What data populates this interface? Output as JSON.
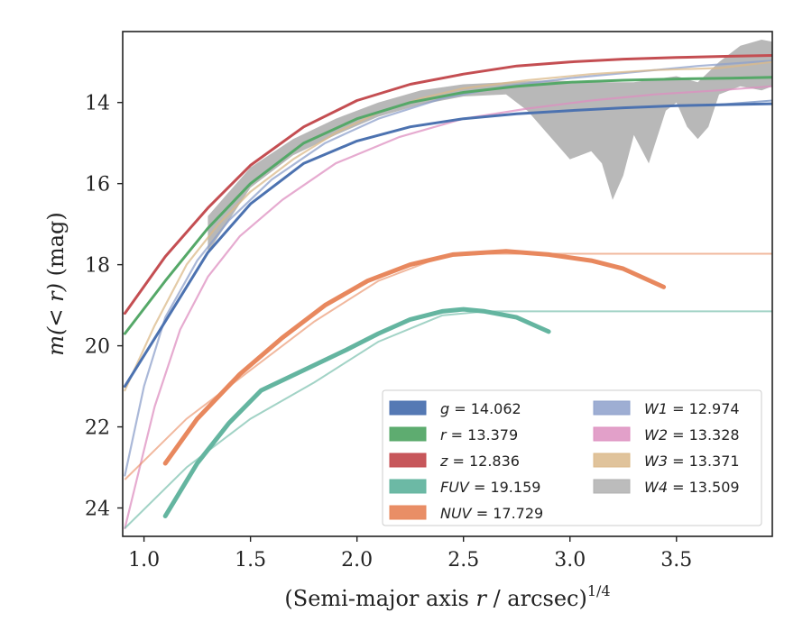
{
  "chart_data": {
    "type": "line",
    "xlabel": "(Semi-major axis r / arcsec)^1/4",
    "xlabel_parts": {
      "pre": "(Semi-major axis ",
      "var": "r",
      "mid": " / arcsec)",
      "sup": "1/4"
    },
    "ylabel": "m(<r) (mag)",
    "ylabel_parts": {
      "pre": "m",
      "var": "(< r)",
      "post": " (mag)"
    },
    "xlim": [
      0.9,
      3.95
    ],
    "ylim": [
      24.7,
      12.25
    ],
    "y_inverted": true,
    "xticks": [
      "1.0",
      "1.5",
      "2.0",
      "2.5",
      "3.0",
      "3.5"
    ],
    "yticks": [
      "14",
      "16",
      "18",
      "20",
      "22",
      "24"
    ],
    "grid": false,
    "legend_placement": "lower right",
    "series": [
      {
        "name": "g = 14.062",
        "band": "g",
        "value": "14.062",
        "color": "#4c72b0",
        "points": [
          [
            0.91,
            21.0
          ],
          [
            1.1,
            19.4
          ],
          [
            1.3,
            17.7
          ],
          [
            1.5,
            16.5
          ],
          [
            1.75,
            15.5
          ],
          [
            2.0,
            14.95
          ],
          [
            2.25,
            14.6
          ],
          [
            2.5,
            14.4
          ],
          [
            2.75,
            14.28
          ],
          [
            3.0,
            14.2
          ],
          [
            3.25,
            14.13
          ],
          [
            3.5,
            14.08
          ],
          [
            3.75,
            14.05
          ],
          [
            3.95,
            14.03
          ]
        ],
        "bound_points": [
          [
            3.7,
            14.05
          ],
          [
            3.95,
            13.95
          ]
        ]
      },
      {
        "name": "r = 13.379",
        "band": "r",
        "value": "13.379",
        "color": "#55a868",
        "points": [
          [
            0.91,
            19.7
          ],
          [
            1.1,
            18.4
          ],
          [
            1.3,
            17.1
          ],
          [
            1.5,
            16.0
          ],
          [
            1.75,
            15.0
          ],
          [
            2.0,
            14.4
          ],
          [
            2.25,
            14.0
          ],
          [
            2.5,
            13.75
          ],
          [
            2.75,
            13.6
          ],
          [
            3.0,
            13.5
          ],
          [
            3.25,
            13.45
          ],
          [
            3.5,
            13.42
          ],
          [
            3.75,
            13.4
          ],
          [
            3.95,
            13.38
          ]
        ]
      },
      {
        "name": "z = 12.836",
        "band": "z",
        "value": "12.836",
        "color": "#c44e52",
        "points": [
          [
            0.91,
            19.2
          ],
          [
            1.1,
            17.8
          ],
          [
            1.3,
            16.6
          ],
          [
            1.5,
            15.55
          ],
          [
            1.75,
            14.6
          ],
          [
            2.0,
            13.95
          ],
          [
            2.25,
            13.55
          ],
          [
            2.5,
            13.3
          ],
          [
            2.75,
            13.1
          ],
          [
            3.0,
            13.0
          ],
          [
            3.25,
            12.93
          ],
          [
            3.5,
            12.89
          ],
          [
            3.75,
            12.86
          ],
          [
            3.95,
            12.84
          ]
        ]
      },
      {
        "name": "FUV = 19.159",
        "band": "FUV",
        "value": "19.159",
        "color": "#64b5a0",
        "points": [
          [
            1.1,
            24.2
          ],
          [
            1.25,
            22.9
          ],
          [
            1.4,
            21.9
          ],
          [
            1.55,
            21.1
          ],
          [
            1.75,
            20.6
          ],
          [
            1.95,
            20.1
          ],
          [
            2.1,
            19.7
          ],
          [
            2.25,
            19.35
          ],
          [
            2.4,
            19.15
          ],
          [
            2.5,
            19.1
          ],
          [
            2.6,
            19.15
          ],
          [
            2.75,
            19.3
          ],
          [
            2.9,
            19.65
          ]
        ],
        "bound_points": [
          [
            0.91,
            24.5
          ],
          [
            1.2,
            23.0
          ],
          [
            1.5,
            21.8
          ],
          [
            1.8,
            20.9
          ],
          [
            2.1,
            19.9
          ],
          [
            2.4,
            19.25
          ],
          [
            2.6,
            19.15
          ],
          [
            3.95,
            19.15
          ]
        ]
      },
      {
        "name": "NUV = 17.729",
        "band": "NUV",
        "value": "17.729",
        "color": "#e8885e",
        "points": [
          [
            1.1,
            22.9
          ],
          [
            1.25,
            21.8
          ],
          [
            1.45,
            20.7
          ],
          [
            1.65,
            19.8
          ],
          [
            1.85,
            19.0
          ],
          [
            2.05,
            18.4
          ],
          [
            2.25,
            18.0
          ],
          [
            2.45,
            17.75
          ],
          [
            2.7,
            17.67
          ],
          [
            2.9,
            17.75
          ],
          [
            3.1,
            17.9
          ],
          [
            3.25,
            18.1
          ],
          [
            3.44,
            18.55
          ]
        ],
        "bound_points": [
          [
            0.91,
            23.3
          ],
          [
            1.2,
            21.8
          ],
          [
            1.5,
            20.6
          ],
          [
            1.8,
            19.4
          ],
          [
            2.1,
            18.4
          ],
          [
            2.4,
            17.8
          ],
          [
            2.6,
            17.73
          ],
          [
            3.95,
            17.73
          ]
        ]
      },
      {
        "name": "W1 = 12.974",
        "band": "W1",
        "value": "12.974",
        "color": "#8da0cb",
        "points": [
          [
            0.91,
            23.2
          ],
          [
            1.0,
            21.0
          ],
          [
            1.1,
            19.3
          ],
          [
            1.25,
            17.9
          ],
          [
            1.4,
            16.9
          ],
          [
            1.6,
            15.9
          ],
          [
            1.85,
            15.0
          ],
          [
            2.1,
            14.4
          ],
          [
            2.4,
            13.9
          ],
          [
            2.7,
            13.6
          ],
          [
            3.0,
            13.4
          ],
          [
            3.3,
            13.25
          ],
          [
            3.6,
            13.1
          ],
          [
            3.95,
            12.97
          ]
        ]
      },
      {
        "name": "W2 = 13.328",
        "band": "W2",
        "value": "13.328",
        "color": "#dd8fc0",
        "points": [
          [
            0.91,
            24.5
          ],
          [
            1.05,
            21.5
          ],
          [
            1.17,
            19.6
          ],
          [
            1.3,
            18.3
          ],
          [
            1.45,
            17.3
          ],
          [
            1.65,
            16.4
          ],
          [
            1.9,
            15.5
          ],
          [
            2.2,
            14.85
          ],
          [
            2.5,
            14.4
          ],
          [
            2.8,
            14.15
          ],
          [
            3.1,
            13.95
          ],
          [
            3.4,
            13.8
          ],
          [
            3.7,
            13.7
          ],
          [
            3.95,
            13.6
          ]
        ]
      },
      {
        "name": "W3 = 13.371",
        "band": "W3",
        "value": "13.371",
        "color": "#dbb98a",
        "points": [
          [
            0.91,
            21.1
          ],
          [
            1.05,
            19.5
          ],
          [
            1.2,
            18.0
          ],
          [
            1.35,
            17.0
          ],
          [
            1.5,
            16.2
          ],
          [
            1.7,
            15.4
          ],
          [
            1.9,
            14.75
          ],
          [
            2.1,
            14.25
          ],
          [
            2.3,
            13.9
          ],
          [
            2.5,
            13.65
          ],
          [
            2.8,
            13.45
          ],
          [
            3.1,
            13.3
          ],
          [
            3.4,
            13.2
          ],
          [
            3.7,
            13.15
          ],
          [
            3.95,
            13.0
          ]
        ]
      },
      {
        "name": "W4 = 13.509",
        "band": "W4",
        "value": "13.509",
        "color": "#b0b0b0",
        "upper": [
          [
            1.3,
            16.8
          ],
          [
            1.5,
            15.6
          ],
          [
            1.7,
            14.9
          ],
          [
            1.9,
            14.4
          ],
          [
            2.1,
            14.0
          ],
          [
            2.3,
            13.7
          ],
          [
            2.5,
            13.55
          ],
          [
            2.7,
            13.5
          ],
          [
            2.9,
            13.45
          ],
          [
            3.1,
            13.5
          ],
          [
            3.3,
            13.5
          ],
          [
            3.5,
            13.35
          ],
          [
            3.6,
            13.5
          ],
          [
            3.7,
            13.0
          ],
          [
            3.8,
            12.6
          ],
          [
            3.9,
            12.45
          ],
          [
            3.95,
            12.5
          ]
        ],
        "lower": [
          [
            1.3,
            17.7
          ],
          [
            1.5,
            16.1
          ],
          [
            1.7,
            15.3
          ],
          [
            1.9,
            14.8
          ],
          [
            2.1,
            14.35
          ],
          [
            2.3,
            14.05
          ],
          [
            2.5,
            13.85
          ],
          [
            2.7,
            13.8
          ],
          [
            2.8,
            14.2
          ],
          [
            2.9,
            14.8
          ],
          [
            3.0,
            15.4
          ],
          [
            3.1,
            15.2
          ],
          [
            3.15,
            15.5
          ],
          [
            3.2,
            16.4
          ],
          [
            3.25,
            15.8
          ],
          [
            3.3,
            14.8
          ],
          [
            3.37,
            15.5
          ],
          [
            3.45,
            14.2
          ],
          [
            3.5,
            14.0
          ],
          [
            3.55,
            14.6
          ],
          [
            3.6,
            14.9
          ],
          [
            3.65,
            14.6
          ],
          [
            3.7,
            13.8
          ],
          [
            3.8,
            13.6
          ],
          [
            3.9,
            13.7
          ],
          [
            3.95,
            13.6
          ]
        ]
      }
    ]
  }
}
